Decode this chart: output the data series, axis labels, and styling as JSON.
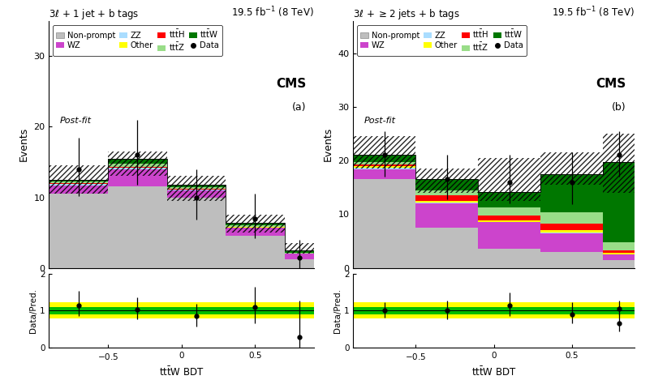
{
  "panel_a": {
    "bin_edges": [
      -0.9,
      -0.5,
      -0.1,
      0.3,
      0.7,
      0.9
    ],
    "ylim": [
      0,
      35
    ],
    "yticks": [
      0,
      10,
      20,
      30
    ],
    "stacks": {
      "nonprompt": [
        10.5,
        11.5,
        10.0,
        4.5,
        1.2
      ],
      "wz": [
        1.2,
        2.5,
        1.0,
        1.2,
        0.8
      ],
      "zz": [
        0.15,
        0.2,
        0.1,
        0.05,
        0.03
      ],
      "other": [
        0.05,
        0.05,
        0.03,
        0.03,
        0.01
      ],
      "tth": [
        0.1,
        0.1,
        0.05,
        0.05,
        0.02
      ],
      "ttz": [
        0.2,
        0.4,
        0.25,
        0.2,
        0.1
      ],
      "ttw": [
        0.3,
        0.75,
        0.32,
        0.37,
        0.34
      ]
    },
    "hatch_up": [
      14.5,
      16.5,
      13.0,
      7.5,
      3.5
    ],
    "hatch_down": [
      10.5,
      13.0,
      9.5,
      5.0,
      2.0
    ],
    "data_x": [
      -0.7,
      -0.3,
      0.1,
      0.5,
      0.8
    ],
    "data_y": [
      14.0,
      16.0,
      10.0,
      7.0,
      1.5
    ],
    "data_yerr_up": [
      4.5,
      5.0,
      4.0,
      3.5,
      2.5
    ],
    "data_yerr_down": [
      3.8,
      4.2,
      3.2,
      2.8,
      1.5
    ],
    "ratio_data": [
      1.15,
      1.03,
      0.85,
      1.1,
      0.28
    ],
    "ratio_err_up": [
      0.38,
      0.33,
      0.34,
      0.55,
      1.0
    ],
    "ratio_err_down": [
      0.3,
      0.27,
      0.27,
      0.44,
      0.28
    ],
    "ratio_band_green": 0.1,
    "ratio_band_yellow": 0.22,
    "ratio_ylim": [
      0,
      2
    ]
  },
  "panel_b": {
    "bin_edges": [
      -0.9,
      -0.5,
      -0.1,
      0.3,
      0.7,
      0.9
    ],
    "ylim": [
      0,
      46
    ],
    "yticks": [
      0,
      10,
      20,
      30,
      40
    ],
    "stacks": {
      "nonprompt": [
        16.5,
        7.5,
        3.5,
        3.0,
        1.5
      ],
      "wz": [
        1.8,
        4.5,
        5.0,
        3.5,
        1.0
      ],
      "zz": [
        0.3,
        0.2,
        0.1,
        0.1,
        0.05
      ],
      "other": [
        0.4,
        0.3,
        0.3,
        0.5,
        0.2
      ],
      "tth": [
        0.2,
        1.0,
        0.8,
        1.2,
        0.5
      ],
      "ttz": [
        0.5,
        1.0,
        1.5,
        2.0,
        1.5
      ],
      "ttw": [
        1.3,
        2.0,
        2.95,
        7.2,
        15.0
      ]
    },
    "hatch_up": [
      24.5,
      18.5,
      20.5,
      21.5,
      25.0
    ],
    "hatch_down": [
      18.5,
      14.0,
      12.5,
      15.5,
      14.0
    ],
    "data_x": [
      -0.7,
      -0.3,
      0.1,
      0.5,
      0.8
    ],
    "data_y": [
      21.0,
      16.5,
      16.0,
      16.0,
      21.0
    ],
    "data_yerr_up": [
      4.5,
      4.5,
      5.0,
      5.5,
      4.5
    ],
    "data_yerr_down": [
      4.0,
      3.8,
      4.0,
      4.2,
      4.0
    ],
    "ratio_data": [
      1.0,
      1.0,
      1.13,
      0.91,
      1.06
    ],
    "ratio_err_up": [
      0.22,
      0.27,
      0.35,
      0.32,
      0.22
    ],
    "ratio_err_down": [
      0.19,
      0.23,
      0.28,
      0.26,
      0.19
    ],
    "ratio_last_point": 0.65,
    "ratio_last_err_up": 0.28,
    "ratio_last_err_down": 0.22,
    "ratio_band_green": 0.1,
    "ratio_band_yellow": 0.22,
    "ratio_ylim": [
      0,
      2
    ]
  },
  "colors": {
    "nonprompt": "#bebebe",
    "wz": "#cc44cc",
    "zz": "#aaddff",
    "other": "#ffff00",
    "tth": "#ff0000",
    "ttz": "#99dd88",
    "ttw": "#007700",
    "ratio_green": "#00bb00",
    "ratio_yellow": "#ffff00"
  },
  "title_a": "3$\\ell$ + 1 jet + b tags",
  "title_b": "3$\\ell$ + $\\geq$2 jets + b tags",
  "lumi": "19.5 fb$^{-1}$ (8 TeV)",
  "cms_label": "CMS",
  "postfit": "Post-fit",
  "xlabel": "tt$\\bar{\\rm t}$W BDT",
  "ylabel": "Events",
  "ratio_ylabel": "Data/Pred.",
  "label_a": "(a)",
  "label_b": "(b)",
  "legend_labels": [
    "Non-prompt",
    "WZ",
    "ZZ",
    "Other",
    "tt$\\bar{\\rm t}$H",
    "tt$\\bar{\\rm t}$Z",
    "tt$\\bar{\\rm t}$W",
    "Data"
  ]
}
